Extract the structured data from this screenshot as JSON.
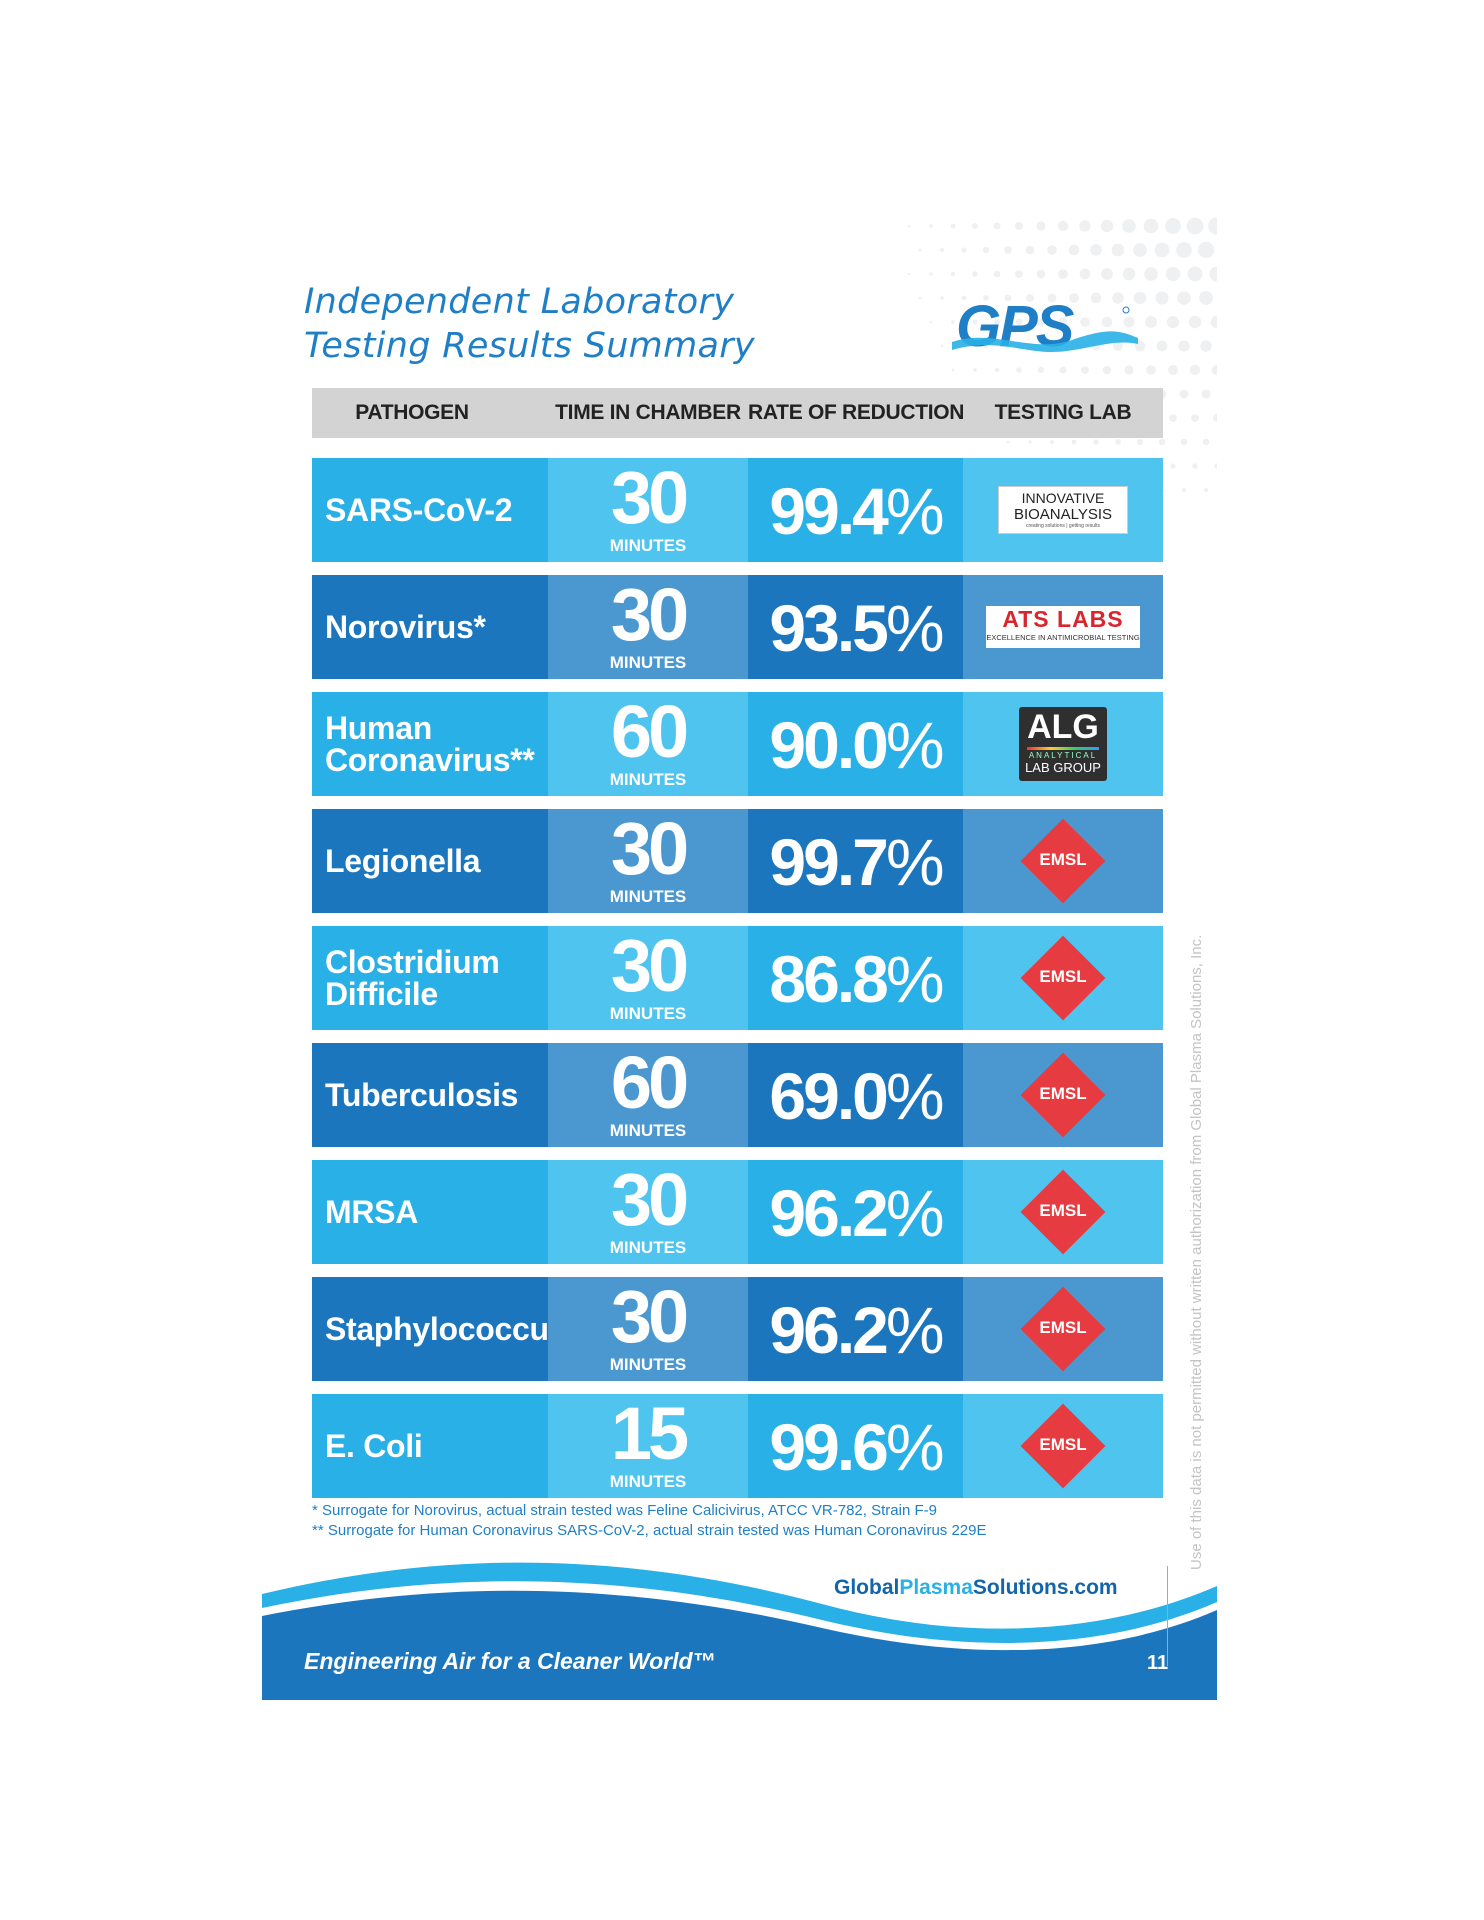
{
  "title": [
    "Independent Laboratory",
    "Testing Results Summary"
  ],
  "logo_text": "GPS",
  "columns": [
    "PATHOGEN",
    "TIME IN CHAMBER",
    "RATE OF REDUCTION",
    "TESTING LAB"
  ],
  "time_unit": "MINUTES",
  "rows": [
    {
      "pathogen": "SARS-CoV-2",
      "time": "30",
      "rate": "99.4",
      "lab": "INNOVATIVE BIOANALYSIS"
    },
    {
      "pathogen": "Norovirus*",
      "time": "30",
      "rate": "93.5",
      "lab": "ATS LABS"
    },
    {
      "pathogen": "Human\nCoronavirus**",
      "time": "60",
      "rate": "90.0",
      "lab": "ALG"
    },
    {
      "pathogen": "Legionella",
      "time": "30",
      "rate": "99.7",
      "lab": "EMSL"
    },
    {
      "pathogen": "Clostridium\nDifficile",
      "time": "30",
      "rate": "86.8",
      "lab": "EMSL"
    },
    {
      "pathogen": "Tuberculosis",
      "time": "60",
      "rate": "69.0",
      "lab": "EMSL"
    },
    {
      "pathogen": "MRSA",
      "time": "30",
      "rate": "96.2",
      "lab": "EMSL"
    },
    {
      "pathogen": "Staphylococcus",
      "time": "30",
      "rate": "96.2",
      "lab": "EMSL"
    },
    {
      "pathogen": "E. Coli",
      "time": "15",
      "rate": "99.6",
      "lab": "EMSL"
    }
  ],
  "percent_sign": "%",
  "labs": {
    "innovative": {
      "line1": "INNOVATIVE",
      "line2": "BIOANALYSIS",
      "line3": "creating solutions | getting results"
    },
    "ats": {
      "name": "ATS LABS",
      "sub": "EXCELLENCE IN ANTIMICROBIAL TESTING"
    },
    "alg": {
      "name": "ALG",
      "sub1": "ANALYTICAL",
      "sub2": "LAB GROUP"
    },
    "emsl": {
      "name": "EMSL"
    }
  },
  "footnotes": [
    "* Surrogate for Norovirus, actual strain tested was Feline Calicivirus, ATCC VR-782, Strain F-9",
    "** Surrogate for Human Coronavirus SARS-CoV-2, actual strain tested was Human Coronavirus 229E"
  ],
  "website": {
    "part1": "Global",
    "part2": "Plasma",
    "part3": "Solutions.com"
  },
  "tagline": "Engineering Air for a Cleaner World™",
  "page_number": "11",
  "side_notice": "Use of this data is not permitted without written authorization from Global Plasma Solutions, Inc.",
  "colors": {
    "light_row": [
      "#29b0e6",
      "#4ec4ef",
      "#29b0e6",
      "#4ec4ef"
    ],
    "dark_row": [
      "#1b76bd",
      "#4b98d0",
      "#1b76bd",
      "#4b98d0"
    ],
    "header_bg": "#d3d3d3",
    "brand_blue": "#1f7fc6",
    "emsl_red": "#e63b40"
  }
}
